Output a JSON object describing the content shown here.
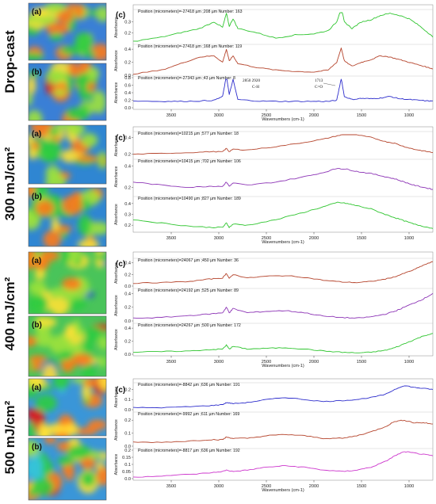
{
  "figure": {
    "groups": [
      {
        "key": "dropcast",
        "row_label": "Drop-cast",
        "panel_label": "(c)",
        "map_labels": [
          "(a)",
          "(b)"
        ],
        "xlabel": "Wavenumbers (cm-1)",
        "annotations": [
          {
            "text": "2850  2920",
            "sub": "C-H"
          },
          {
            "text": "1713",
            "sub": "C=O"
          }
        ]
      },
      {
        "key": "mj300",
        "row_label": "300 mJ/cm²",
        "panel_label": "(c)",
        "map_labels": [
          "(a)",
          "(b)"
        ],
        "xlabel": "Wavenumbers (cm-1)"
      },
      {
        "key": "mj400",
        "row_label": "400 mJ/cm²",
        "panel_label": "(c)",
        "map_labels": [
          "(a)",
          "(b)"
        ],
        "xlabel": "Wavenumbers (cm-1)"
      },
      {
        "key": "mj500",
        "row_label": "500 mJ/cm²",
        "panel_label": "(c)",
        "map_labels": [
          "(a)",
          "(b)"
        ],
        "xlabel": "Wavenumbers (cm-1)"
      }
    ]
  },
  "chart_data": [
    {
      "type": "line",
      "group": "Drop-cast",
      "ylabel": "Absorbance",
      "xlim": [
        3900,
        750
      ],
      "ylim": [
        0.1,
        0.4
      ],
      "yticks": [
        0.2,
        0.3
      ],
      "color": "#2fc52f",
      "title": "Position (micrometers)=-27418 µm ;208 µm  Number: 163",
      "x": [
        3900,
        3600,
        3400,
        3200,
        3050,
        2960,
        2920,
        2890,
        2850,
        2800,
        2600,
        2400,
        2200,
        2000,
        1850,
        1760,
        1713,
        1680,
        1600,
        1500,
        1400,
        1300,
        1200,
        1100,
        1000,
        900,
        800,
        750
      ],
      "y": [
        0.12,
        0.16,
        0.2,
        0.24,
        0.3,
        0.25,
        0.38,
        0.26,
        0.33,
        0.24,
        0.2,
        0.15,
        0.18,
        0.19,
        0.22,
        0.3,
        0.43,
        0.3,
        0.24,
        0.3,
        0.32,
        0.36,
        0.38,
        0.36,
        0.33,
        0.27,
        0.2,
        0.16
      ]
    },
    {
      "type": "line",
      "group": "Drop-cast",
      "ylabel": "Absorbance",
      "xlim": [
        3900,
        750
      ],
      "ylim": [
        0.0,
        0.45
      ],
      "yticks": [
        0.0,
        0.2,
        0.4
      ],
      "color": "#b5442c",
      "title": "Position (micrometers)=-27418 µm ;168 µm  Number: 119",
      "x": [
        3900,
        3600,
        3400,
        3200,
        3050,
        2960,
        2920,
        2890,
        2850,
        2800,
        2600,
        2400,
        2200,
        2000,
        1850,
        1760,
        1713,
        1680,
        1600,
        1500,
        1400,
        1300,
        1200,
        1100,
        1000,
        900,
        800,
        750
      ],
      "y": [
        0.02,
        0.08,
        0.18,
        0.28,
        0.3,
        0.2,
        0.4,
        0.22,
        0.3,
        0.18,
        0.12,
        0.08,
        0.06,
        0.05,
        0.08,
        0.2,
        0.42,
        0.22,
        0.14,
        0.2,
        0.24,
        0.3,
        0.28,
        0.24,
        0.2,
        0.16,
        0.12,
        0.1
      ]
    },
    {
      "type": "line",
      "group": "Drop-cast",
      "ylabel": "Absorbance",
      "xlim": [
        3900,
        750
      ],
      "ylim": [
        0.0,
        0.8
      ],
      "yticks": [
        0.0,
        0.2,
        0.4,
        0.6,
        0.8
      ],
      "color": "#2d2dcc",
      "title": "Position (micrometers)=-27343 µm ;43 µm  Number: 8",
      "x": [
        3900,
        3600,
        3400,
        3200,
        3050,
        2960,
        2920,
        2890,
        2850,
        2800,
        2600,
        2400,
        2200,
        2000,
        1850,
        1760,
        1713,
        1680,
        1600,
        1500,
        1400,
        1300,
        1200,
        1100,
        1000,
        900,
        800,
        750
      ],
      "y": [
        0.18,
        0.17,
        0.17,
        0.18,
        0.2,
        0.3,
        0.85,
        0.35,
        0.75,
        0.22,
        0.18,
        0.17,
        0.17,
        0.17,
        0.17,
        0.2,
        0.78,
        0.3,
        0.22,
        0.25,
        0.24,
        0.26,
        0.3,
        0.24,
        0.22,
        0.2,
        0.18,
        0.18
      ]
    },
    {
      "type": "line",
      "group": "300 mJ/cm²",
      "ylabel": "Absorbance",
      "xlim": [
        3900,
        750
      ],
      "ylim": [
        0.15,
        0.45
      ],
      "yticks": [
        0.2,
        0.4
      ],
      "color": "#b5442c",
      "title": "Position (micrometers)=10215 µm ;577 µm  Number: 18",
      "x": [
        3900,
        3600,
        3300,
        3100,
        2960,
        2920,
        2890,
        2850,
        2700,
        2400,
        2100,
        1900,
        1750,
        1650,
        1550,
        1400,
        1250,
        1150,
        1050,
        950,
        850,
        750
      ],
      "y": [
        0.2,
        0.21,
        0.22,
        0.23,
        0.23,
        0.27,
        0.23,
        0.26,
        0.25,
        0.29,
        0.34,
        0.38,
        0.42,
        0.44,
        0.43,
        0.4,
        0.35,
        0.33,
        0.29,
        0.26,
        0.24,
        0.22
      ]
    },
    {
      "type": "line",
      "group": "300 mJ/cm²",
      "ylabel": "Absorbance",
      "xlim": [
        3900,
        750
      ],
      "ylim": [
        0.15,
        0.45
      ],
      "yticks": [
        0.2,
        0.4
      ],
      "color": "#8d35b6",
      "title": "Position (micrometers)=10415 µm ;702 µm  Number: 106",
      "x": [
        3900,
        3600,
        3300,
        3100,
        2960,
        2920,
        2890,
        2850,
        2700,
        2400,
        2100,
        1900,
        1750,
        1650,
        1550,
        1400,
        1250,
        1150,
        1050,
        950,
        850,
        750
      ],
      "y": [
        0.25,
        0.22,
        0.2,
        0.21,
        0.21,
        0.25,
        0.21,
        0.24,
        0.22,
        0.25,
        0.3,
        0.34,
        0.38,
        0.37,
        0.35,
        0.33,
        0.3,
        0.28,
        0.25,
        0.22,
        0.2,
        0.18
      ]
    },
    {
      "type": "line",
      "group": "300 mJ/cm²",
      "ylabel": "Absorbance",
      "xlim": [
        3900,
        750
      ],
      "ylim": [
        0.15,
        0.45
      ],
      "yticks": [
        0.2,
        0.3,
        0.4
      ],
      "color": "#2fc52f",
      "title": "Position (micrometers)=10490 µm ;827 µm  Number: 189",
      "x": [
        3900,
        3600,
        3300,
        3100,
        2960,
        2920,
        2890,
        2850,
        2700,
        2400,
        2100,
        1900,
        1750,
        1650,
        1550,
        1400,
        1250,
        1150,
        1050,
        950,
        850,
        750
      ],
      "y": [
        0.25,
        0.22,
        0.19,
        0.18,
        0.18,
        0.22,
        0.18,
        0.21,
        0.2,
        0.25,
        0.32,
        0.37,
        0.41,
        0.4,
        0.38,
        0.35,
        0.3,
        0.27,
        0.24,
        0.21,
        0.19,
        0.17
      ]
    },
    {
      "type": "line",
      "group": "400 mJ/cm²",
      "ylabel": "Absorbance",
      "xlim": [
        3900,
        750
      ],
      "ylim": [
        0.0,
        0.45
      ],
      "yticks": [
        0.0,
        0.2,
        0.4
      ],
      "color": "#b5442c",
      "title": "Position (micrometers)=24067 µm ;450 µm  Number: 36",
      "x": [
        3900,
        3600,
        3300,
        3100,
        2960,
        2920,
        2890,
        2850,
        2700,
        2500,
        2300,
        2100,
        1900,
        1700,
        1550,
        1400,
        1250,
        1150,
        1050,
        950,
        850,
        750
      ],
      "y": [
        0.05,
        0.06,
        0.08,
        0.12,
        0.14,
        0.22,
        0.13,
        0.2,
        0.14,
        0.17,
        0.18,
        0.15,
        0.1,
        0.07,
        0.06,
        0.08,
        0.12,
        0.16,
        0.22,
        0.28,
        0.36,
        0.42
      ]
    },
    {
      "type": "line",
      "group": "400 mJ/cm²",
      "ylabel": "Absorbance",
      "xlim": [
        3900,
        750
      ],
      "ylim": [
        0.0,
        0.45
      ],
      "yticks": [
        0.0,
        0.2,
        0.4
      ],
      "color": "#8d35b6",
      "title": "Position (micrometers)=24192 µm ;525 µm  Number: 89",
      "x": [
        3900,
        3600,
        3300,
        3100,
        2960,
        2920,
        2890,
        2850,
        2700,
        2500,
        2300,
        2100,
        1900,
        1700,
        1550,
        1400,
        1250,
        1150,
        1050,
        950,
        850,
        750
      ],
      "y": [
        0.04,
        0.05,
        0.08,
        0.1,
        0.12,
        0.2,
        0.12,
        0.18,
        0.12,
        0.14,
        0.15,
        0.12,
        0.07,
        0.05,
        0.04,
        0.06,
        0.1,
        0.14,
        0.2,
        0.26,
        0.32,
        0.4
      ]
    },
    {
      "type": "line",
      "group": "400 mJ/cm²",
      "ylabel": "Absorbance",
      "xlim": [
        3900,
        750
      ],
      "ylim": [
        0.0,
        0.45
      ],
      "yticks": [
        0.0,
        0.2,
        0.4
      ],
      "color": "#2fc52f",
      "title": "Position (micrometers)=24267 µm ;500 µm  Number: 172",
      "x": [
        3900,
        3600,
        3300,
        3100,
        2960,
        2920,
        2890,
        2850,
        2700,
        2500,
        2300,
        2100,
        1900,
        1700,
        1550,
        1400,
        1250,
        1150,
        1050,
        950,
        850,
        750
      ],
      "y": [
        0.03,
        0.04,
        0.05,
        0.07,
        0.08,
        0.14,
        0.08,
        0.12,
        0.08,
        0.09,
        0.1,
        0.08,
        0.05,
        0.03,
        0.02,
        0.03,
        0.06,
        0.1,
        0.16,
        0.22,
        0.28,
        0.32
      ]
    },
    {
      "type": "line",
      "group": "500 mJ/cm²",
      "ylabel": "Absorbance",
      "xlim": [
        3900,
        750
      ],
      "ylim": [
        0.0,
        0.25
      ],
      "yticks": [
        0.0,
        0.1,
        0.2
      ],
      "color": "#2d2dcc",
      "title": "Position (micrometers)=-8842 µm ;636 µm  Number: 191",
      "x": [
        3900,
        3600,
        3300,
        3100,
        2960,
        2920,
        2850,
        2700,
        2500,
        2300,
        2100,
        1900,
        1700,
        1550,
        1400,
        1250,
        1150,
        1050,
        950,
        850,
        750
      ],
      "y": [
        0.02,
        0.02,
        0.03,
        0.04,
        0.05,
        0.07,
        0.06,
        0.07,
        0.1,
        0.12,
        0.1,
        0.08,
        0.09,
        0.1,
        0.12,
        0.15,
        0.2,
        0.24,
        0.22,
        0.21,
        0.2
      ]
    },
    {
      "type": "line",
      "group": "500 mJ/cm²",
      "ylabel": "Absorbance",
      "xlim": [
        3900,
        750
      ],
      "ylim": [
        0.0,
        0.25
      ],
      "yticks": [
        0.0,
        0.1,
        0.2
      ],
      "color": "#b5442c",
      "title": "Position (micrometers)=-9992 µm ;611 µm  Number: 169",
      "x": [
        3900,
        3600,
        3300,
        3100,
        2960,
        2920,
        2850,
        2700,
        2500,
        2300,
        2100,
        1900,
        1700,
        1550,
        1400,
        1250,
        1150,
        1050,
        950,
        850,
        750
      ],
      "y": [
        0.03,
        0.03,
        0.04,
        0.05,
        0.05,
        0.07,
        0.06,
        0.06,
        0.08,
        0.09,
        0.08,
        0.06,
        0.06,
        0.08,
        0.11,
        0.15,
        0.19,
        0.2,
        0.18,
        0.18,
        0.17
      ]
    },
    {
      "type": "line",
      "group": "500 mJ/cm²",
      "ylabel": "Absorbance",
      "xlim": [
        3900,
        750
      ],
      "ylim": [
        0.0,
        0.2
      ],
      "yticks": [
        0.0,
        0.05,
        0.1,
        0.15,
        0.2
      ],
      "color": "#cc35cc",
      "title": "Position (micrometers)=-8817 µm ;636 µm  Number: 192",
      "x": [
        3900,
        3600,
        3300,
        3100,
        2960,
        2920,
        2850,
        2700,
        2500,
        2300,
        2100,
        1900,
        1700,
        1550,
        1400,
        1250,
        1150,
        1050,
        950,
        850,
        750
      ],
      "y": [
        0.01,
        0.02,
        0.03,
        0.04,
        0.05,
        0.06,
        0.05,
        0.06,
        0.08,
        0.09,
        0.08,
        0.06,
        0.05,
        0.06,
        0.08,
        0.12,
        0.16,
        0.19,
        0.18,
        0.17,
        0.16
      ]
    }
  ]
}
